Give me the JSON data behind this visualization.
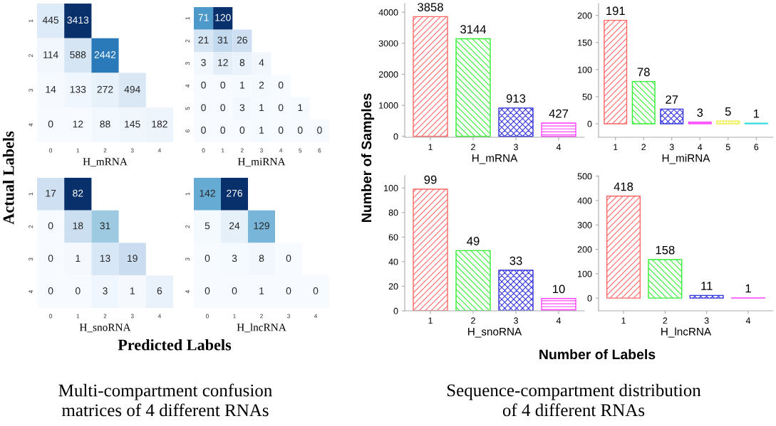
{
  "chart_data": [
    {
      "type": "heatmap",
      "xlabel": "H_mRNA",
      "categories": [
        "0",
        "1",
        "2",
        "3",
        "4"
      ],
      "y_categories": [
        "1",
        "2",
        "3",
        "4"
      ],
      "data_labels": true,
      "cells": [
        [
          445,
          3413,
          null,
          null,
          null
        ],
        [
          114,
          588,
          2442,
          null,
          null
        ],
        [
          14,
          133,
          272,
          494,
          null
        ],
        [
          0,
          12,
          88,
          145,
          182
        ]
      ],
      "annotations": [
        "Actual Labels",
        "Predicted Labels",
        "Multi-compartment confusion\nmatrices of 4 different RNAs"
      ]
    },
    {
      "type": "heatmap",
      "xlabel": "H_miRNA",
      "categories": [
        "0",
        "1",
        "2",
        "3",
        "4",
        "5",
        "6"
      ],
      "y_categories": [
        "1",
        "2",
        "3",
        "4",
        "5",
        "6"
      ],
      "data_labels": true,
      "cells": [
        [
          71,
          120,
          null,
          null,
          null,
          null,
          null
        ],
        [
          21,
          31,
          26,
          null,
          null,
          null,
          null
        ],
        [
          3,
          12,
          8,
          4,
          null,
          null,
          null
        ],
        [
          0,
          0,
          1,
          2,
          0,
          null,
          null
        ],
        [
          0,
          0,
          3,
          1,
          0,
          1,
          null
        ],
        [
          0,
          0,
          0,
          1,
          0,
          0,
          0
        ]
      ]
    },
    {
      "type": "heatmap",
      "xlabel": "H_snoRNA",
      "categories": [
        "0",
        "1",
        "2",
        "3",
        "4"
      ],
      "y_categories": [
        "1",
        "2",
        "3",
        "4"
      ],
      "data_labels": true,
      "cells": [
        [
          17,
          82,
          null,
          null,
          null
        ],
        [
          0,
          18,
          31,
          null,
          null
        ],
        [
          0,
          1,
          13,
          19,
          null
        ],
        [
          0,
          0,
          3,
          1,
          6
        ]
      ]
    },
    {
      "type": "heatmap",
      "xlabel": "H_lncRNA",
      "categories": [
        "0",
        "1",
        "2",
        "3",
        "4"
      ],
      "y_categories": [
        "1",
        "2",
        "3",
        "4"
      ],
      "data_labels": true,
      "cells": [
        [
          142,
          276,
          null,
          null,
          null
        ],
        [
          5,
          24,
          129,
          null,
          null
        ],
        [
          0,
          3,
          8,
          0,
          null
        ],
        [
          0,
          0,
          1,
          0,
          0
        ]
      ]
    },
    {
      "type": "bar",
      "xlabel": "H_mRNA",
      "categories": [
        "1",
        "2",
        "3",
        "4"
      ],
      "values": [
        3858,
        3144,
        913,
        427
      ],
      "colors": [
        "#ff6666",
        "#33ee33",
        "#3333dd",
        "#ff44ff"
      ],
      "ylim": [
        -30,
        4280
      ],
      "yticks": [
        0,
        1000,
        2000,
        3000,
        4000
      ],
      "data_labels": true,
      "annotations": [
        "Number of Samples",
        "Number of Labels",
        "Sequence-compartment distribution\nof 4 different RNAs"
      ]
    },
    {
      "type": "bar",
      "xlabel": "H_miRNA",
      "categories": [
        "1",
        "2",
        "3",
        "4",
        "5",
        "6"
      ],
      "values": [
        191,
        78,
        27,
        3,
        5,
        1
      ],
      "colors": [
        "#ff6666",
        "#33ee33",
        "#3333dd",
        "#ff44ff",
        "#eeee44",
        "#33dddd"
      ],
      "ylim": [
        -25,
        222
      ],
      "yticks": [
        0,
        50,
        100,
        150,
        200
      ],
      "data_labels": true
    },
    {
      "type": "bar",
      "xlabel": "H_snoRNA",
      "categories": [
        "1",
        "2",
        "3",
        "4"
      ],
      "values": [
        99,
        49,
        33,
        10
      ],
      "colors": [
        "#ff6666",
        "#33ee33",
        "#3333dd",
        "#ff44ff"
      ],
      "ylim": [
        0,
        110
      ],
      "yticks": [
        0,
        20,
        40,
        60,
        80,
        100
      ],
      "data_labels": true
    },
    {
      "type": "bar",
      "xlabel": "H_lncRNA",
      "categories": [
        "1",
        "2",
        "3",
        "4"
      ],
      "values": [
        418,
        158,
        11,
        1
      ],
      "colors": [
        "#ff6666",
        "#33ee33",
        "#3333dd",
        "#ff44ff"
      ],
      "ylim": [
        -52,
        502
      ],
      "yticks": [
        0,
        100,
        200,
        300,
        400,
        500
      ],
      "data_labels": true
    }
  ]
}
